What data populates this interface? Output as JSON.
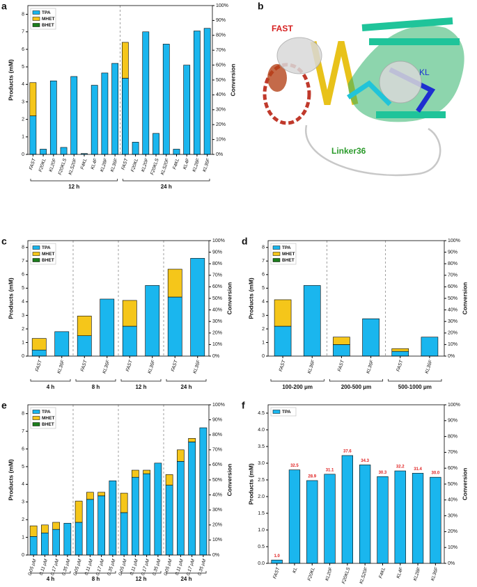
{
  "chart_data": [
    {
      "panel": "a",
      "type": "bar",
      "stacked": true,
      "ylabel": "Products (mM)",
      "y2label": "Conversion",
      "ylim": [
        0,
        8.5
      ],
      "yticks": [
        0,
        1,
        2,
        3,
        4,
        5,
        6,
        7,
        8
      ],
      "y2lim": [
        0,
        100
      ],
      "y2ticks": [
        {
          "value": 0,
          "label": "0%"
        },
        {
          "value": 10,
          "label": "10%"
        },
        {
          "value": 20,
          "label": "20%"
        },
        {
          "value": 30,
          "label": "30%"
        },
        {
          "value": 40,
          "label": "40%"
        },
        {
          "value": 50,
          "label": "50%"
        },
        {
          "value": 60,
          "label": "60%"
        },
        {
          "value": 70,
          "label": "70%"
        },
        {
          "value": 80,
          "label": "80%"
        },
        {
          "value": 90,
          "label": "90%"
        },
        {
          "value": 100,
          "label": "100%"
        }
      ],
      "legend": "upper left",
      "groups": [
        {
          "label": "12 h",
          "categories": [
            "FAST",
            "F20KL",
            "KL20F",
            "F20KLS",
            "KLS20F",
            "F4KL",
            "KL4F",
            "KL28F",
            "KL36F"
          ]
        },
        {
          "label": "24 h",
          "categories": [
            "FAST",
            "F20KL",
            "KL20F",
            "F20KLS",
            "KLS20F",
            "F4KL",
            "KL4F",
            "KL28F",
            "KL36F"
          ]
        }
      ],
      "series": [
        {
          "name": "TPA",
          "color": "#1ab6ee",
          "values": [
            [
              2.2,
              0.3,
              4.2,
              0.4,
              4.45,
              0.05,
              3.95,
              4.65,
              5.2
            ],
            [
              4.35,
              0.7,
              7.0,
              1.2,
              6.3,
              0.3,
              5.1,
              7.05,
              7.2
            ]
          ]
        },
        {
          "name": "MHET",
          "color": "#f5c61a",
          "values": [
            [
              1.9,
              0,
              0,
              0,
              0,
              0,
              0,
              0,
              0
            ],
            [
              2.05,
              0,
              0,
              0,
              0,
              0,
              0,
              0,
              0
            ]
          ]
        },
        {
          "name": "BHET",
          "color": "#1b7d1b",
          "values": [
            [
              0,
              0,
              0,
              0,
              0,
              0,
              0,
              0,
              0
            ],
            [
              0,
              0,
              0,
              0,
              0,
              0,
              0,
              0,
              0
            ]
          ]
        }
      ]
    },
    {
      "panel": "c",
      "type": "bar",
      "stacked": true,
      "ylabel": "Products (mM)",
      "y2label": "Conversion",
      "ylim": [
        0,
        8.5
      ],
      "yticks": [
        0,
        1,
        2,
        3,
        4,
        5,
        6,
        7,
        8
      ],
      "y2lim": [
        0,
        100
      ],
      "y2ticks": [
        {
          "value": 0,
          "label": "0%"
        },
        {
          "value": 10,
          "label": "10%"
        },
        {
          "value": 20,
          "label": "20%"
        },
        {
          "value": 30,
          "label": "30%"
        },
        {
          "value": 40,
          "label": "40%"
        },
        {
          "value": 50,
          "label": "50%"
        },
        {
          "value": 60,
          "label": "60%"
        },
        {
          "value": 70,
          "label": "70%"
        },
        {
          "value": 80,
          "label": "80%"
        },
        {
          "value": 90,
          "label": "90%"
        },
        {
          "value": 100,
          "label": "100%"
        }
      ],
      "legend": "upper left",
      "groups": [
        {
          "label": "4 h",
          "categories": [
            "FAST",
            "KL36F"
          ]
        },
        {
          "label": "8 h",
          "categories": [
            "FAST",
            "KL36F"
          ]
        },
        {
          "label": "12 h",
          "categories": [
            "FAST",
            "KL36F"
          ]
        },
        {
          "label": "24 h",
          "categories": [
            "FAST",
            "KL36F"
          ]
        }
      ],
      "series": [
        {
          "name": "TPA",
          "color": "#1ab6ee",
          "values": [
            [
              0.45,
              1.8
            ],
            [
              1.5,
              4.2
            ],
            [
              2.2,
              5.2
            ],
            [
              4.35,
              7.2
            ]
          ]
        },
        {
          "name": "MHET",
          "color": "#f5c61a",
          "values": [
            [
              0.85,
              0
            ],
            [
              1.45,
              0
            ],
            [
              1.9,
              0
            ],
            [
              2.05,
              0
            ]
          ]
        },
        {
          "name": "BHET",
          "color": "#1b7d1b",
          "values": [
            [
              0,
              0
            ],
            [
              0,
              0
            ],
            [
              0,
              0
            ],
            [
              0,
              0
            ]
          ]
        }
      ]
    },
    {
      "panel": "d",
      "type": "bar",
      "stacked": true,
      "ylabel": "Products (mM)",
      "y2label": "Conversion",
      "ylim": [
        0,
        8.5
      ],
      "yticks": [
        0,
        1,
        2,
        3,
        4,
        5,
        6,
        7,
        8
      ],
      "y2lim": [
        0,
        100
      ],
      "y2ticks": [
        {
          "value": 0,
          "label": "0%"
        },
        {
          "value": 10,
          "label": "10%"
        },
        {
          "value": 20,
          "label": "20%"
        },
        {
          "value": 30,
          "label": "30%"
        },
        {
          "value": 40,
          "label": "40%"
        },
        {
          "value": 50,
          "label": "50%"
        },
        {
          "value": 60,
          "label": "60%"
        },
        {
          "value": 70,
          "label": "70%"
        },
        {
          "value": 80,
          "label": "80%"
        },
        {
          "value": 90,
          "label": "90%"
        },
        {
          "value": 100,
          "label": "100%"
        }
      ],
      "legend": "upper left",
      "groups": [
        {
          "label": "100-200 μm",
          "categories": [
            "FAST",
            "KL36F"
          ]
        },
        {
          "label": "200-500 μm",
          "categories": [
            "FAST",
            "KL36F"
          ]
        },
        {
          "label": "500-1000 μm",
          "categories": [
            "FAST",
            "KL36F"
          ]
        }
      ],
      "series": [
        {
          "name": "TPA",
          "color": "#1ab6ee",
          "values": [
            [
              2.2,
              5.2
            ],
            [
              0.85,
              2.75
            ],
            [
              0.35,
              1.4
            ]
          ]
        },
        {
          "name": "MHET",
          "color": "#f5c61a",
          "values": [
            [
              1.95,
              0
            ],
            [
              0.55,
              0
            ],
            [
              0.2,
              0
            ]
          ]
        },
        {
          "name": "BHET",
          "color": "#1b7d1b",
          "values": [
            [
              0,
              0
            ],
            [
              0,
              0
            ],
            [
              0,
              0
            ]
          ]
        }
      ]
    },
    {
      "panel": "e",
      "type": "bar",
      "stacked": true,
      "ylabel": "Products (mM)",
      "y2label": "Conversion",
      "ylim": [
        0,
        8.5
      ],
      "yticks": [
        0,
        1,
        2,
        3,
        4,
        5,
        6,
        7,
        8
      ],
      "y2lim": [
        0,
        100
      ],
      "y2ticks": [
        {
          "value": 0,
          "label": "0%"
        },
        {
          "value": 10,
          "label": "10%"
        },
        {
          "value": 20,
          "label": "20%"
        },
        {
          "value": 30,
          "label": "30%"
        },
        {
          "value": 40,
          "label": "40%"
        },
        {
          "value": 50,
          "label": "50%"
        },
        {
          "value": 60,
          "label": "60%"
        },
        {
          "value": 70,
          "label": "70%"
        },
        {
          "value": 80,
          "label": "80%"
        },
        {
          "value": 90,
          "label": "90%"
        },
        {
          "value": 100,
          "label": "100%"
        }
      ],
      "legend": "upper left",
      "groups": [
        {
          "label": "4 h",
          "categories": [
            "0.05 μM",
            "0.11 μM",
            "0.17 μM",
            "0.35 μM"
          ]
        },
        {
          "label": "8 h",
          "categories": [
            "0.05 μM",
            "0.11 μM",
            "0.17 μM",
            "0.35 μM"
          ]
        },
        {
          "label": "12 h",
          "categories": [
            "0.05 μM",
            "0.11 μM",
            "0.17 μM",
            "0.35 μM"
          ]
        },
        {
          "label": "24 h",
          "categories": [
            "0.05 μM",
            "0.11 μM",
            "0.17 μM",
            "0.35 μM"
          ]
        }
      ],
      "series": [
        {
          "name": "TPA",
          "color": "#1ab6ee",
          "values": [
            [
              1.05,
              1.25,
              1.45,
              1.8
            ],
            [
              1.85,
              3.15,
              3.35,
              4.2
            ],
            [
              2.4,
              4.4,
              4.6,
              5.2
            ],
            [
              3.95,
              5.3,
              6.4,
              7.2
            ]
          ]
        },
        {
          "name": "MHET",
          "color": "#f5c61a",
          "values": [
            [
              0.6,
              0.45,
              0.4,
              0
            ],
            [
              1.2,
              0.4,
              0.2,
              0
            ],
            [
              1.1,
              0.4,
              0.2,
              0
            ],
            [
              0.6,
              0.65,
              0.2,
              0
            ]
          ]
        },
        {
          "name": "BHET",
          "color": "#1b7d1b",
          "values": [
            [
              0,
              0,
              0,
              0
            ],
            [
              0,
              0,
              0,
              0
            ],
            [
              0,
              0,
              0,
              0
            ],
            [
              0,
              0,
              0,
              0
            ]
          ]
        }
      ]
    },
    {
      "panel": "f",
      "type": "bar",
      "stacked": false,
      "ylabel": "Products (mM)",
      "y2label": "Conversion",
      "ylim": [
        0,
        4.75
      ],
      "yticks": [
        {
          "value": 0,
          "label": "0.0"
        },
        {
          "value": 0.5,
          "label": "0.5"
        },
        {
          "value": 1,
          "label": "1.0"
        },
        {
          "value": 1.5,
          "label": "1.5"
        },
        {
          "value": 2,
          "label": "2.0"
        },
        {
          "value": 2.5,
          "label": "2.5"
        },
        {
          "value": 3,
          "label": "3.0"
        },
        {
          "value": 3.5,
          "label": "3.5"
        },
        {
          "value": 4,
          "label": "4.0"
        },
        {
          "value": 4.5,
          "label": "4.5"
        }
      ],
      "y2lim": [
        0,
        100
      ],
      "y2ticks": [
        {
          "value": 0,
          "label": "0%"
        },
        {
          "value": 10,
          "label": "10%"
        },
        {
          "value": 20,
          "label": "20%"
        },
        {
          "value": 30,
          "label": "30%"
        },
        {
          "value": 40,
          "label": "40%"
        },
        {
          "value": 50,
          "label": "50%"
        },
        {
          "value": 60,
          "label": "60%"
        },
        {
          "value": 70,
          "label": "70%"
        },
        {
          "value": 80,
          "label": "80%"
        },
        {
          "value": 90,
          "label": "90%"
        },
        {
          "value": 100,
          "label": "100%"
        }
      ],
      "legend": "upper left",
      "categories": [
        "FAST",
        "KL",
        "F20KL",
        "KL20F",
        "F20KLS",
        "KLS20F",
        "F4KL",
        "KL4F",
        "KL28F",
        "KL36F"
      ],
      "series": [
        {
          "name": "TPA",
          "color": "#1ab6ee",
          "values": [
            0.1,
            2.8,
            2.48,
            2.67,
            3.23,
            2.95,
            2.6,
            2.77,
            2.7,
            2.58
          ]
        }
      ],
      "conversion_labels": [
        "1.0",
        "32.5",
        "28.9",
        "31.1",
        "37.6",
        "34.3",
        "30.3",
        "32.2",
        "31.4",
        "30.0"
      ]
    }
  ],
  "structure": {
    "panel": "b",
    "labels": [
      "FAST",
      "KL",
      "Linker36"
    ]
  }
}
